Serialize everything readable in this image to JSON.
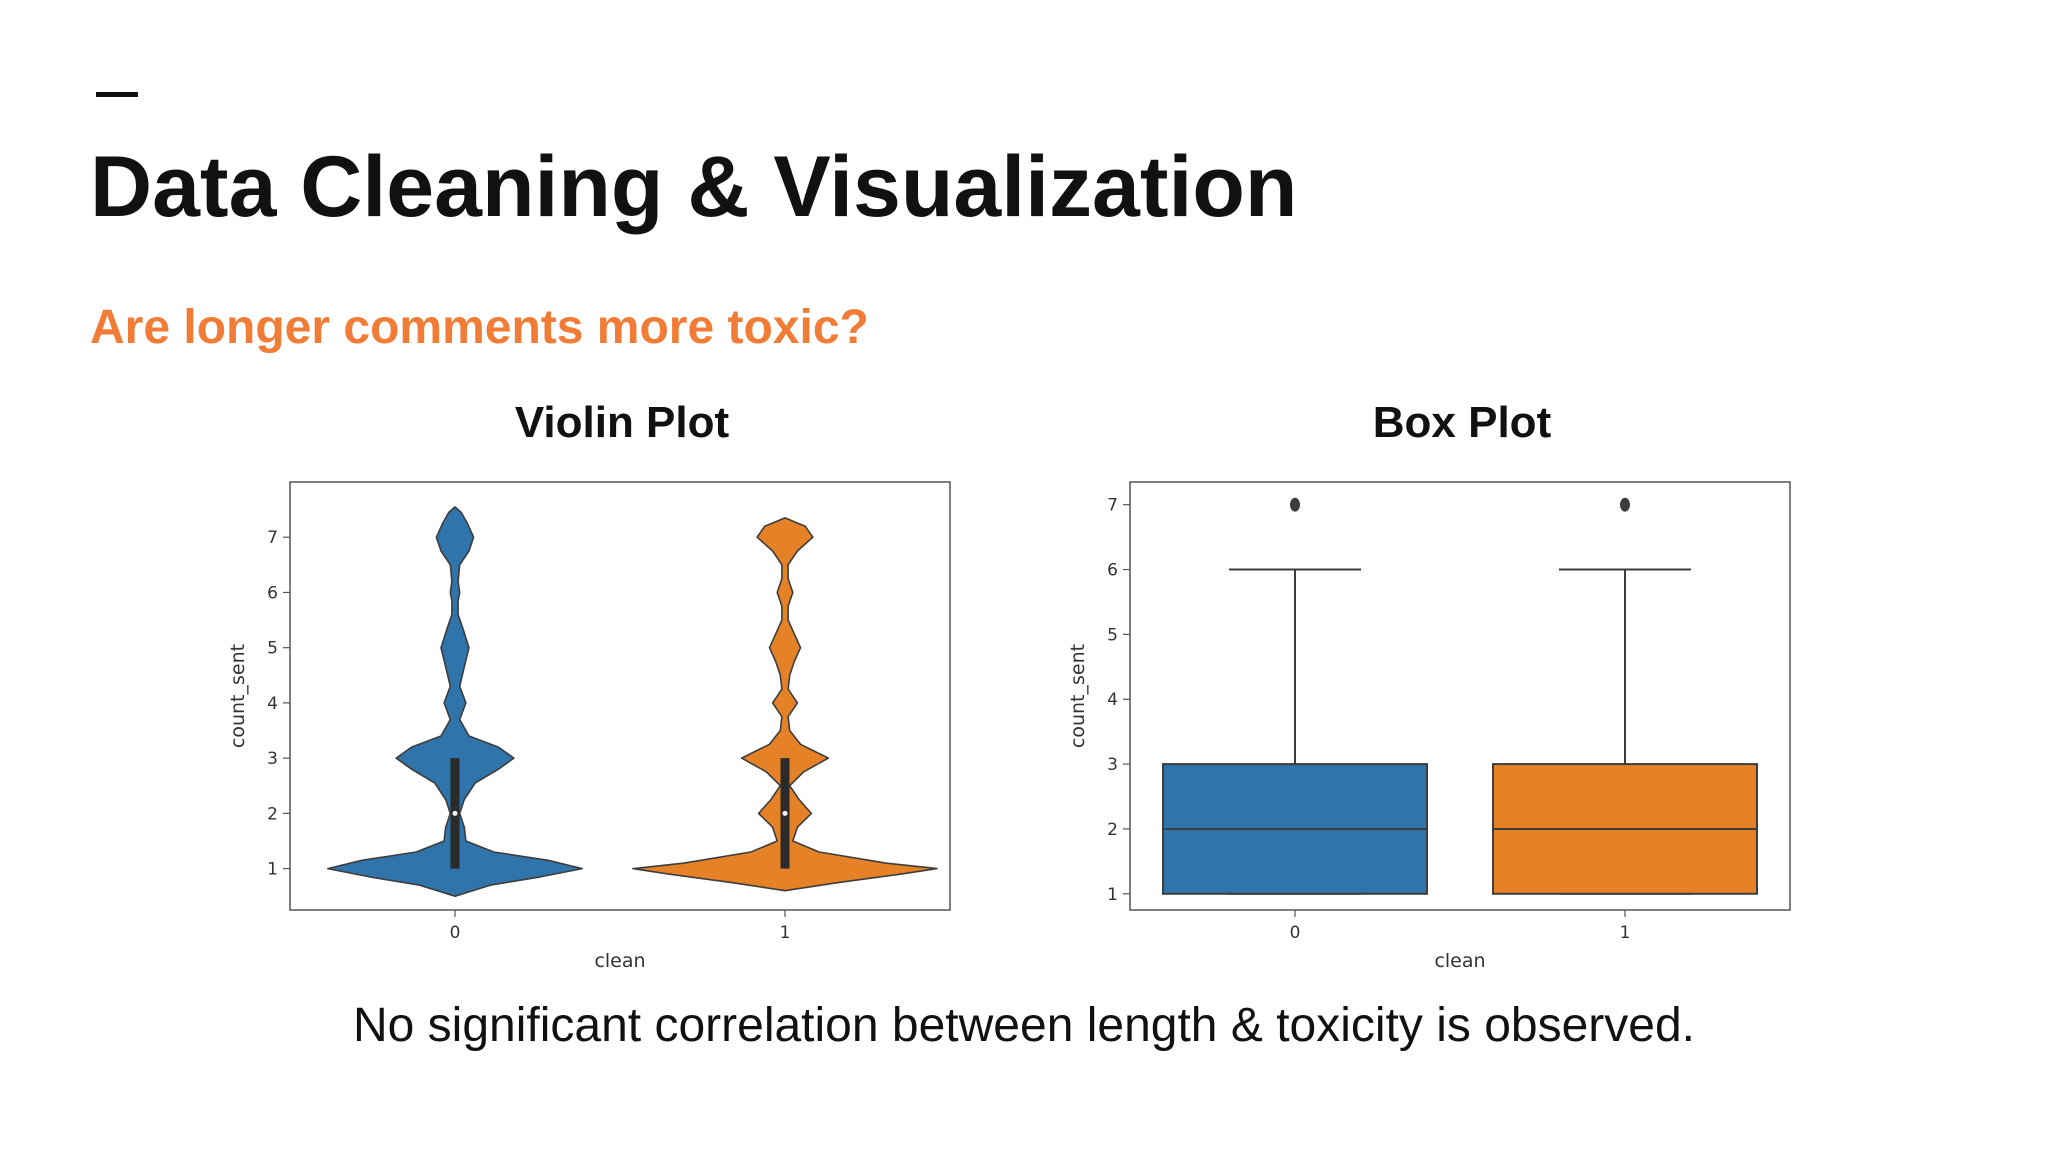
{
  "slide": {
    "title": "Data Cleaning & Visualization",
    "question": "Are longer comments more toxic?",
    "conclusion": "No significant correlation between length & toxicity is observed."
  },
  "colors": {
    "accent": "#f07c36",
    "series_0": "#2f74aa",
    "series_1": "#e58127"
  },
  "chart_data": [
    {
      "type": "violin",
      "title": "Violin Plot",
      "xlabel": "clean",
      "ylabel": "count_sent",
      "categories": [
        "0",
        "1"
      ],
      "yticks": [
        1,
        2,
        3,
        4,
        5,
        6,
        7
      ],
      "ylim": [
        0.25,
        8.0
      ],
      "grid": false,
      "series": [
        {
          "category": "0",
          "color": "#2f74aa",
          "density_y": [
            0.5,
            0.7,
            0.85,
            1.0,
            1.15,
            1.3,
            1.5,
            1.75,
            2.0,
            2.25,
            2.55,
            2.8,
            3.0,
            3.2,
            3.4,
            3.7,
            4.0,
            4.3,
            4.65,
            5.0,
            5.35,
            5.6,
            5.85,
            6.0,
            6.2,
            6.5,
            6.75,
            7.0,
            7.25,
            7.45,
            7.55
          ],
          "density_width": [
            0.0,
            0.23,
            0.55,
            0.82,
            0.6,
            0.25,
            0.07,
            0.06,
            0.03,
            0.06,
            0.13,
            0.28,
            0.38,
            0.28,
            0.09,
            0.03,
            0.07,
            0.03,
            0.06,
            0.09,
            0.05,
            0.02,
            0.02,
            0.03,
            0.02,
            0.03,
            0.09,
            0.12,
            0.08,
            0.04,
            0.0
          ],
          "quartiles": [
            1,
            2,
            3
          ],
          "median": 2
        },
        {
          "category": "1",
          "color": "#e58127",
          "density_y": [
            0.6,
            0.75,
            0.9,
            1.0,
            1.1,
            1.3,
            1.5,
            1.75,
            2.0,
            2.25,
            2.5,
            2.75,
            3.0,
            3.25,
            3.5,
            3.75,
            4.0,
            4.25,
            4.5,
            4.75,
            5.0,
            5.25,
            5.5,
            5.75,
            6.0,
            6.25,
            6.5,
            6.75,
            7.0,
            7.2,
            7.35
          ],
          "density_width": [
            0.0,
            0.35,
            0.75,
            0.98,
            0.65,
            0.22,
            0.05,
            0.08,
            0.17,
            0.09,
            0.03,
            0.12,
            0.28,
            0.1,
            0.03,
            0.02,
            0.08,
            0.02,
            0.03,
            0.06,
            0.1,
            0.06,
            0.02,
            0.02,
            0.05,
            0.02,
            0.02,
            0.08,
            0.18,
            0.13,
            0.0
          ],
          "quartiles": [
            1,
            2,
            3
          ],
          "median": 2
        }
      ]
    },
    {
      "type": "box",
      "title": "Box Plot",
      "xlabel": "clean",
      "ylabel": "count_sent",
      "categories": [
        "0",
        "1"
      ],
      "yticks": [
        1,
        2,
        3,
        4,
        5,
        6,
        7
      ],
      "ylim": [
        0.75,
        7.35
      ],
      "grid": false,
      "series": [
        {
          "category": "0",
          "color": "#2f74aa",
          "min": 1,
          "q1": 1,
          "median": 2,
          "q3": 3,
          "max": 6,
          "outliers": [
            7
          ]
        },
        {
          "category": "1",
          "color": "#e58127",
          "min": 1,
          "q1": 1,
          "median": 2,
          "q3": 3,
          "max": 6,
          "outliers": [
            7
          ]
        }
      ]
    }
  ]
}
